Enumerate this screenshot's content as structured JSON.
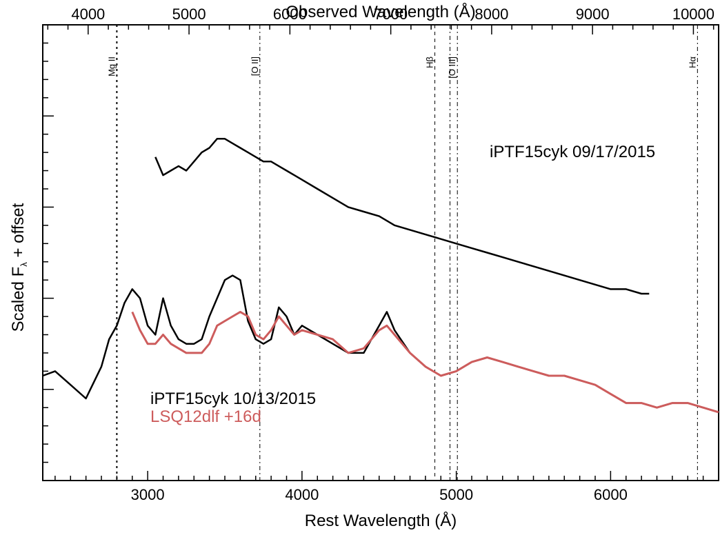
{
  "chart_data": {
    "type": "line",
    "xlabel": "Rest Wavelength (Å)",
    "x2label": "Observed Wavelength (Å)",
    "ylabel_main": "Scaled F",
    "ylabel_sub": "λ",
    "ylabel_rest": " + offset",
    "xlim": [
      2320,
      6700
    ],
    "x2lim": [
      3550,
      10250
    ],
    "ylim": [
      0,
      100
    ],
    "x_ticks": [
      3000,
      4000,
      5000,
      6000
    ],
    "x_tick_labels": [
      "3000",
      "4000",
      "5000",
      "6000"
    ],
    "x2_ticks": [
      4000,
      5000,
      6000,
      7000,
      8000,
      9000,
      10000
    ],
    "x2_tick_labels": [
      "4000",
      "5000",
      "6000",
      "7000",
      "8000",
      "9000",
      "10000"
    ],
    "lines": [
      {
        "label": "Mg II",
        "x": 2800,
        "style": "dotted"
      },
      {
        "label": "[O II]",
        "x": 3727,
        "style": "dashdot"
      },
      {
        "label": "Hβ",
        "x": 4861,
        "style": "dashed"
      },
      {
        "label": "",
        "x": 4959,
        "style": "dashdot"
      },
      {
        "label": "[O III]",
        "x": 5007,
        "style": "dashdot"
      },
      {
        "label": "Hα",
        "x": 6563,
        "style": "dashdot"
      }
    ],
    "series": [
      {
        "name": "iPTF15cyk 09/17/2015",
        "color": "#000000",
        "x": [
          3050,
          3100,
          3150,
          3200,
          3250,
          3300,
          3350,
          3400,
          3450,
          3500,
          3550,
          3600,
          3650,
          3700,
          3750,
          3800,
          3850,
          3900,
          3950,
          4000,
          4100,
          4200,
          4300,
          4400,
          4500,
          4600,
          4700,
          4800,
          4900,
          5000,
          5100,
          5200,
          5300,
          5400,
          5500,
          5600,
          5700,
          5800,
          5900,
          6000,
          6100,
          6200,
          6250
        ],
        "y": [
          71,
          67,
          68,
          69,
          68,
          70,
          72,
          73,
          75,
          75,
          74,
          73,
          72,
          71,
          70,
          70,
          69,
          68,
          67,
          66,
          64,
          62,
          60,
          59,
          58,
          56,
          55,
          54,
          53,
          52,
          51,
          50,
          49,
          48,
          47,
          46,
          45,
          44,
          43,
          42,
          42,
          41,
          41
        ]
      },
      {
        "name": "iPTF15cyk 10/13/2015",
        "color": "#000000",
        "x": [
          2320,
          2400,
          2500,
          2600,
          2700,
          2750,
          2800,
          2850,
          2900,
          2950,
          3000,
          3050,
          3100,
          3150,
          3200,
          3250,
          3300,
          3350,
          3400,
          3450,
          3500,
          3550,
          3600,
          3650,
          3700,
          3750,
          3800,
          3850,
          3900,
          3950,
          4000,
          4100,
          4200,
          4300,
          4400,
          4500,
          4550,
          4600,
          4700,
          4800,
          4900,
          5000,
          5100,
          5200,
          5300,
          5400,
          5500,
          5600,
          5700,
          5800,
          5900,
          6000,
          6100,
          6200,
          6300,
          6400,
          6500,
          6600,
          6700
        ],
        "y": [
          23,
          24,
          21,
          18,
          25,
          31,
          34,
          39,
          42,
          40,
          34,
          32,
          40,
          34,
          31,
          30,
          30,
          31,
          36,
          40,
          44,
          45,
          44,
          35,
          31,
          30,
          31,
          38,
          36,
          32,
          34,
          32,
          30,
          28,
          28,
          34,
          37,
          33,
          28,
          25,
          23,
          24,
          26,
          27,
          26,
          25,
          24,
          23,
          23,
          22,
          21,
          19,
          17,
          17,
          16,
          17,
          17,
          16,
          15
        ]
      },
      {
        "name": "LSQ12dlf +16d",
        "color": "#cd5c5c",
        "x": [
          2900,
          2950,
          3000,
          3050,
          3100,
          3150,
          3200,
          3250,
          3300,
          3350,
          3400,
          3450,
          3500,
          3550,
          3600,
          3650,
          3700,
          3750,
          3800,
          3850,
          3900,
          3950,
          4000,
          4100,
          4200,
          4300,
          4400,
          4500,
          4550,
          4600,
          4700,
          4800,
          4900,
          5000,
          5100,
          5200,
          5300,
          5400,
          5500,
          5600,
          5700,
          5800,
          5900,
          6000,
          6100,
          6200,
          6300,
          6400,
          6500,
          6600,
          6700
        ],
        "y": [
          37,
          33,
          30,
          30,
          32,
          30,
          29,
          28,
          28,
          28,
          30,
          34,
          35,
          36,
          37,
          36,
          32,
          31,
          33,
          36,
          34,
          32,
          33,
          32,
          31,
          28,
          29,
          33,
          34,
          32,
          28,
          25,
          23,
          24,
          26,
          27,
          26,
          25,
          24,
          23,
          23,
          22,
          21,
          19,
          17,
          17,
          16,
          17,
          17,
          16,
          15
        ]
      }
    ],
    "annotations": [
      {
        "text": "iPTF15cyk 09/17/2015",
        "color": "#000000"
      },
      {
        "text": "iPTF15cyk 10/13/2015",
        "color": "#000000"
      },
      {
        "text": "LSQ12dlf +16d",
        "color": "#cd5c5c"
      }
    ]
  }
}
